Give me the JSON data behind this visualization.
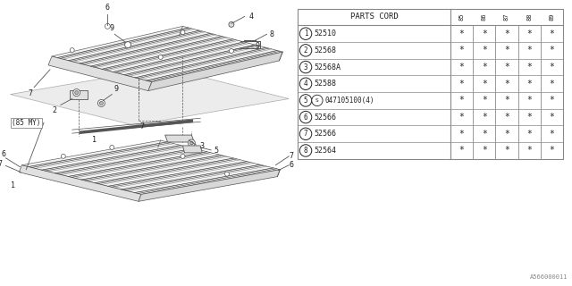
{
  "bg_color": "#ffffff",
  "parts_header": "PARTS CORD",
  "year_cols": [
    "85",
    "86",
    "87",
    "88",
    "89"
  ],
  "rows": [
    {
      "num": "1",
      "code": "52510"
    },
    {
      "num": "2",
      "code": "52568"
    },
    {
      "num": "3",
      "code": "52568A"
    },
    {
      "num": "4",
      "code": "52588"
    },
    {
      "num": "5",
      "code": "047105100(4)",
      "special": true
    },
    {
      "num": "6",
      "code": "52566"
    },
    {
      "num": "7",
      "code": "52566"
    },
    {
      "num": "8",
      "code": "52564"
    }
  ],
  "watermark": "A566000011",
  "line_color": "#888888",
  "text_color": "#222222",
  "draw_color": "#555555"
}
